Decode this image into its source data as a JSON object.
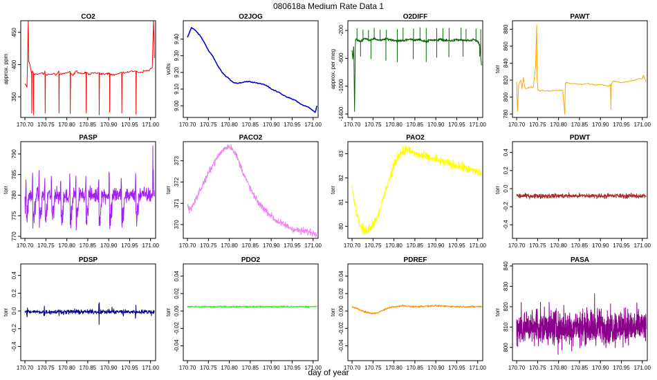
{
  "figure": {
    "title": "080618a   Medium Rate Data 1",
    "xlabel": "day of year"
  },
  "chart_data": [
    {
      "type": "line",
      "title": "CO2",
      "ylabel": "approx. ppm",
      "color": "#ff0000",
      "xlim": [
        170.69,
        171.012
      ],
      "ylim": [
        318,
        468
      ],
      "xticks": [
        170.7,
        170.75,
        170.8,
        170.85,
        170.9,
        170.95,
        171.0
      ],
      "yticks": [
        350,
        400,
        450
      ],
      "x": [
        170.7,
        170.705,
        170.708,
        170.709,
        170.712,
        170.716,
        170.7163,
        170.717,
        170.72,
        170.7203,
        170.721,
        170.73,
        170.74,
        170.745,
        170.748,
        170.7483,
        170.749,
        170.76,
        170.77,
        170.775,
        170.781,
        170.7813,
        170.782,
        170.79,
        170.8,
        170.808,
        170.8083,
        170.809,
        170.815,
        170.822,
        170.83,
        170.84,
        170.846,
        170.8463,
        170.847,
        170.855,
        170.865,
        170.877,
        170.8773,
        170.878,
        170.885,
        170.895,
        170.902,
        170.9023,
        170.903,
        170.91,
        170.92,
        170.931,
        170.9313,
        170.932,
        170.94,
        170.95,
        170.965,
        170.9653,
        170.966,
        170.975,
        170.985,
        170.995,
        171.004,
        171.007,
        171.009
      ],
      "y": [
        370,
        365,
        470,
        405,
        400,
        385,
        325,
        390,
        388,
        322,
        386,
        385,
        387,
        385,
        389,
        325,
        384,
        385,
        386,
        384,
        390,
        325,
        385,
        386,
        387,
        389,
        324,
        386,
        383,
        390,
        387,
        386,
        388,
        325,
        387,
        385,
        387,
        387,
        322,
        385,
        386,
        386,
        387,
        326,
        386,
        384,
        385,
        388,
        325,
        386,
        388,
        389,
        390,
        323,
        389,
        388,
        390,
        391,
        395,
        470,
        410
      ],
      "series_kind": "spiky"
    },
    {
      "type": "line",
      "title": "O2JOG",
      "ylabel": "volts",
      "color": "#0000dd",
      "xlim": [
        170.69,
        171.012
      ],
      "ylim": [
        8.93,
        9.51
      ],
      "xticks": [
        170.7,
        170.75,
        170.8,
        170.85,
        170.9,
        170.95,
        171.0
      ],
      "yticks": [
        9.0,
        9.1,
        9.2,
        9.3,
        9.4
      ],
      "x": [
        170.7,
        170.705,
        170.71,
        170.72,
        170.73,
        170.74,
        170.75,
        170.76,
        170.77,
        170.78,
        170.79,
        170.8,
        170.81,
        170.82,
        170.83,
        170.84,
        170.85,
        170.86,
        170.87,
        170.88,
        170.89,
        170.9,
        170.91,
        170.92,
        170.93,
        170.94,
        170.95,
        170.96,
        170.97,
        170.98,
        170.99,
        171.0,
        171.005,
        171.009
      ],
      "y": [
        9.41,
        9.44,
        9.47,
        9.45,
        9.42,
        9.38,
        9.33,
        9.3,
        9.25,
        9.21,
        9.18,
        9.16,
        9.14,
        9.135,
        9.14,
        9.145,
        9.145,
        9.14,
        9.135,
        9.13,
        9.12,
        9.1,
        9.09,
        9.08,
        9.06,
        9.05,
        9.04,
        9.03,
        9.01,
        9.0,
        8.99,
        8.97,
        8.96,
        9.0
      ],
      "series_kind": "smooth"
    },
    {
      "type": "line",
      "title": "O2DIFF",
      "ylabel": "approx. per meg",
      "color": "#006400",
      "xlim": [
        170.69,
        171.012
      ],
      "ylim": [
        -1450,
        -60
      ],
      "xticks": [
        170.7,
        170.75,
        170.8,
        170.85,
        170.9,
        170.95,
        171.0
      ],
      "yticks": [
        -1400,
        -1000,
        -600,
        -200
      ],
      "x": [
        170.7,
        170.702,
        170.704,
        170.706,
        170.708,
        170.71,
        170.72,
        170.73,
        170.74,
        170.75,
        170.76,
        170.77,
        170.78,
        170.79,
        170.8,
        170.81,
        170.82,
        170.83,
        170.84,
        170.85,
        170.86,
        170.87,
        170.88,
        170.89,
        170.9,
        170.91,
        170.92,
        170.93,
        170.94,
        170.95,
        170.96,
        170.97,
        170.98,
        170.99,
        171.0,
        171.005,
        171.009
      ],
      "y": [
        -500,
        -620,
        -380,
        -1380,
        -330,
        -330,
        -360,
        -310,
        -340,
        -320,
        -330,
        -345,
        -320,
        -330,
        -340,
        -350,
        -345,
        -340,
        -320,
        -345,
        -330,
        -350,
        -355,
        -330,
        -345,
        -330,
        -340,
        -350,
        -345,
        -335,
        -340,
        -345,
        -350,
        -330,
        -360,
        -420,
        -700
      ],
      "spikes_up": [
        170.712,
        170.726,
        170.739,
        170.753,
        170.767,
        170.782,
        170.808,
        170.822,
        170.847,
        170.862,
        170.877,
        170.902,
        170.917,
        170.932,
        170.96,
        170.972,
        170.996,
        171.007
      ],
      "spikes_down": [
        170.703,
        170.72,
        170.745,
        170.781,
        170.808,
        170.846,
        170.877,
        170.902,
        170.931,
        170.965,
        171.005
      ],
      "series_kind": "o2diff"
    },
    {
      "type": "line",
      "title": "PAWT",
      "ylabel": "torr",
      "color": "#ffa500",
      "xlim": [
        170.69,
        171.012
      ],
      "ylim": [
        776,
        890
      ],
      "xticks": [
        170.7,
        170.75,
        170.8,
        170.85,
        170.9,
        170.95,
        171.0
      ],
      "yticks": [
        780,
        800,
        820,
        840,
        860,
        880
      ],
      "x": [
        170.7,
        170.702,
        170.705,
        170.71,
        170.713,
        170.716,
        170.719,
        170.722,
        170.73,
        170.74,
        170.745,
        170.748,
        170.749,
        170.751,
        170.755,
        170.76,
        170.77,
        170.78,
        170.79,
        170.8,
        170.81,
        170.815,
        170.816,
        170.817,
        170.82,
        170.83,
        170.84,
        170.85,
        170.86,
        170.87,
        170.88,
        170.89,
        170.9,
        170.91,
        170.92,
        170.924,
        170.925,
        170.926,
        170.93,
        170.94,
        170.95,
        170.96,
        170.97,
        170.98,
        170.99,
        171.0,
        171.003,
        171.005,
        171.009
      ],
      "y": [
        818,
        783,
        815,
        820,
        810,
        823,
        812,
        810,
        811,
        812,
        835,
        885,
        820,
        808,
        807,
        808,
        807,
        807,
        808,
        808,
        808,
        780,
        810,
        817,
        817,
        816,
        816,
        815,
        815,
        816,
        815,
        814,
        815,
        814,
        813,
        815,
        786,
        814,
        819,
        818,
        817,
        818,
        819,
        820,
        821,
        822,
        826,
        823,
        818
      ],
      "series_kind": "steppy"
    },
    {
      "type": "line",
      "title": "PASP",
      "ylabel": "torr",
      "color": "#a020f0",
      "xlim": [
        170.69,
        171.012
      ],
      "ylim": [
        769.5,
        793
      ],
      "xticks": [
        170.7,
        170.75,
        170.8,
        170.85,
        170.9,
        170.95,
        171.0
      ],
      "yticks": [
        770,
        775,
        780,
        785,
        790
      ],
      "x": [
        170.7,
        170.702,
        170.705,
        170.712,
        170.722,
        170.733,
        170.741,
        170.748,
        170.76,
        170.773,
        170.789,
        170.811,
        170.829,
        170.848,
        170.877,
        170.905,
        170.923,
        170.94,
        170.964,
        171.003,
        171.007,
        171.009
      ],
      "y": [
        773,
        786,
        781,
        780,
        777,
        779,
        774,
        771,
        780,
        775,
        776,
        772,
        774,
        772,
        775,
        774,
        773,
        775,
        776,
        780,
        792,
        780
      ],
      "baseline": 780,
      "noise": 1.4,
      "dips": [
        170.702,
        170.719,
        170.734,
        170.748,
        170.764,
        170.786,
        170.808,
        170.822,
        170.846,
        170.877,
        170.902,
        170.931,
        170.965
      ],
      "series_kind": "pasp"
    },
    {
      "type": "line",
      "title": "PACO2",
      "ylabel": "torr",
      "color": "#ee82ee",
      "xlim": [
        170.69,
        171.012
      ],
      "ylim": [
        369.35,
        373.9
      ],
      "xticks": [
        170.7,
        170.75,
        170.8,
        170.85,
        170.9,
        170.95,
        171.0
      ],
      "yticks": [
        370,
        371,
        372,
        373
      ],
      "x": [
        170.7,
        170.705,
        170.71,
        170.72,
        170.73,
        170.74,
        170.75,
        170.76,
        170.77,
        170.78,
        170.79,
        170.8,
        170.81,
        170.82,
        170.83,
        170.84,
        170.85,
        170.86,
        170.87,
        170.88,
        170.89,
        170.9,
        170.91,
        170.92,
        170.93,
        170.94,
        170.95,
        170.96,
        170.97,
        170.98,
        170.99,
        171.0,
        171.009
      ],
      "y": [
        370.9,
        370.7,
        370.8,
        371.2,
        371.6,
        372.0,
        372.4,
        372.8,
        373.1,
        373.4,
        373.6,
        373.7,
        373.5,
        373.1,
        372.6,
        372.1,
        371.7,
        371.3,
        371.0,
        370.8,
        370.6,
        370.4,
        370.2,
        370.1,
        370.0,
        369.9,
        369.8,
        369.75,
        369.7,
        369.7,
        369.65,
        369.6,
        369.6
      ],
      "noise": 0.12,
      "series_kind": "noisy"
    },
    {
      "type": "line",
      "title": "PAO2",
      "ylabel": "torr",
      "color": "#ffff00",
      "xlim": [
        170.69,
        171.012
      ],
      "ylim": [
        79.5,
        83.5
      ],
      "xticks": [
        170.7,
        170.75,
        170.8,
        170.85,
        170.9,
        170.95,
        171.0
      ],
      "yticks": [
        80,
        81,
        82,
        83
      ],
      "x": [
        170.7,
        170.705,
        170.71,
        170.72,
        170.73,
        170.74,
        170.75,
        170.76,
        170.77,
        170.78,
        170.79,
        170.8,
        170.81,
        170.82,
        170.83,
        170.84,
        170.85,
        170.86,
        170.87,
        170.88,
        170.89,
        170.9,
        170.91,
        170.92,
        170.93,
        170.94,
        170.95,
        170.96,
        170.97,
        170.98,
        170.99,
        171.0,
        171.009
      ],
      "y": [
        81.7,
        81.1,
        80.6,
        80.0,
        79.8,
        79.9,
        80.1,
        80.4,
        80.9,
        81.5,
        82.0,
        82.5,
        82.9,
        83.1,
        83.2,
        83.1,
        83.0,
        82.95,
        82.9,
        82.85,
        82.8,
        82.75,
        82.7,
        82.65,
        82.6,
        82.55,
        82.5,
        82.45,
        82.4,
        82.35,
        82.3,
        82.25,
        82.2
      ],
      "noise": 0.14,
      "series_kind": "noisy"
    },
    {
      "type": "line",
      "title": "PDWT",
      "ylabel": "torr",
      "color": "#a52a2a",
      "xlim": [
        170.69,
        171.012
      ],
      "ylim": [
        -0.55,
        0.52
      ],
      "xticks": [
        170.7,
        170.75,
        170.8,
        170.85,
        170.9,
        170.95,
        171.0
      ],
      "yticks": [
        -0.4,
        -0.2,
        0.0,
        0.2,
        0.4
      ],
      "x": [
        170.7,
        171.009
      ],
      "y": [
        -0.08,
        -0.08
      ],
      "noise": 0.02,
      "series_kind": "flat"
    },
    {
      "type": "line",
      "title": "PDSP",
      "ylabel": "torr",
      "color": "#000080",
      "xlim": [
        170.69,
        171.012
      ],
      "ylim": [
        -0.56,
        0.53
      ],
      "xticks": [
        170.7,
        170.75,
        170.8,
        170.85,
        170.9,
        170.95,
        171.0
      ],
      "yticks": [
        -0.4,
        -0.2,
        0.0,
        0.2,
        0.4
      ],
      "x": [
        170.7,
        171.009
      ],
      "y": [
        -0.01,
        -0.01
      ],
      "noise": 0.018,
      "bumps": [
        170.705,
        170.746,
        170.782,
        170.82,
        170.877,
        170.908,
        170.935,
        170.965,
        171.003
      ],
      "series_kind": "flat"
    },
    {
      "type": "line",
      "title": "PDO2",
      "ylabel": "torr",
      "color": "#00ff00",
      "xlim": [
        170.69,
        171.012
      ],
      "ylim": [
        -0.057,
        0.054
      ],
      "xticks": [
        170.7,
        170.75,
        170.8,
        170.85,
        170.9,
        170.95,
        171.0
      ],
      "yticks": [
        -0.04,
        -0.02,
        0.0,
        0.02,
        0.04
      ],
      "x": [
        170.7,
        171.009
      ],
      "y": [
        0.005,
        0.005
      ],
      "noise": 0.0006,
      "series_kind": "flat"
    },
    {
      "type": "line",
      "title": "PDREF",
      "ylabel": "torr",
      "color": "#ff8c00",
      "xlim": [
        170.69,
        171.012
      ],
      "ylim": [
        -0.057,
        0.054
      ],
      "xticks": [
        170.7,
        170.75,
        170.8,
        170.85,
        170.9,
        170.95,
        171.0
      ],
      "yticks": [
        -0.04,
        -0.02,
        0.0,
        0.02,
        0.04
      ],
      "x": [
        170.7,
        170.71,
        170.72,
        170.73,
        170.74,
        170.75,
        170.76,
        170.77,
        170.78,
        170.79,
        170.8,
        170.81,
        170.82,
        170.85,
        170.9,
        170.95,
        171.0,
        171.009
      ],
      "y": [
        0.005,
        0.003,
        0.001,
        -0.001,
        -0.002,
        -0.003,
        -0.002,
        0.0,
        0.002,
        0.004,
        0.005,
        0.005,
        0.006,
        0.005,
        0.006,
        0.005,
        0.005,
        0.005
      ],
      "noise": 0.0007,
      "series_kind": "flat"
    },
    {
      "type": "line",
      "title": "PASA",
      "ylabel": "torr",
      "color": "#8b008b",
      "xlim": [
        170.69,
        171.012
      ],
      "ylim": [
        793.5,
        841
      ],
      "xticks": [
        170.7,
        170.75,
        170.8,
        170.85,
        170.9,
        170.95,
        171.0
      ],
      "yticks": [
        800,
        810,
        820,
        830,
        840
      ],
      "x": [
        170.7,
        171.009
      ],
      "y": [
        810,
        810
      ],
      "noise": 6.5,
      "series_kind": "dense"
    }
  ]
}
